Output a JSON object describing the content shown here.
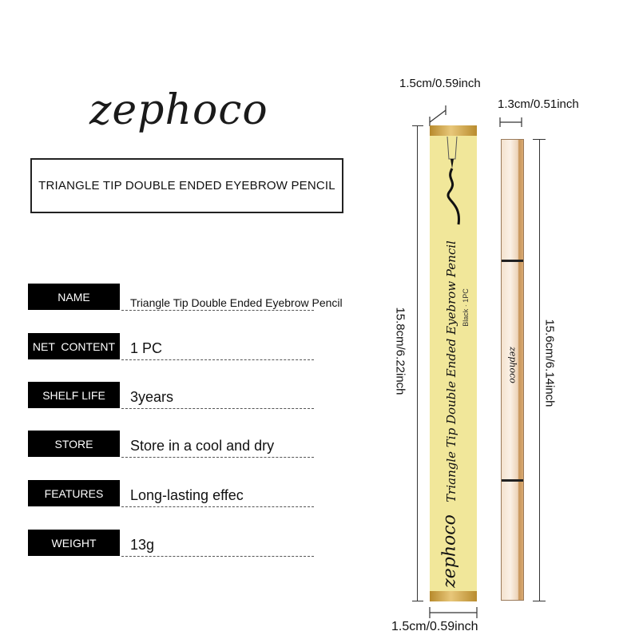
{
  "brand": {
    "logo": "zephoco"
  },
  "title": "TRIANGLE TIP DOUBLE ENDED EYEBROW PENCIL",
  "specs": [
    {
      "label": "NAME",
      "value": "Triangle Tip Double Ended Eyebrow Pencil"
    },
    {
      "label": "NET  CONTENT",
      "value": "1 PC"
    },
    {
      "label": "SHELF LIFE",
      "value": "3years"
    },
    {
      "label": "STORE",
      "value": "Store in a cool and dry"
    },
    {
      "label": "FEATURES",
      "value": "Long-lasting effec"
    },
    {
      "label": "WEIGHT",
      "value": "13g"
    }
  ],
  "package": {
    "product_name": "Triangle Tip Double Ended Eyebrow Pencil",
    "shade": "Black · 1PC",
    "brand": "zephoco",
    "color": "#f1e79a",
    "cap_color": "#c9a04a"
  },
  "pencil": {
    "brand": "zephoco"
  },
  "dimensions": {
    "box_depth": "1.5cm/0.59inch",
    "pencil_width": "1.3cm/0.51inch",
    "box_height": "15.8cm/6.22inch",
    "pencil_height": "15.6cm/6.14inch",
    "box_width": "1.5cm/0.59inch"
  }
}
